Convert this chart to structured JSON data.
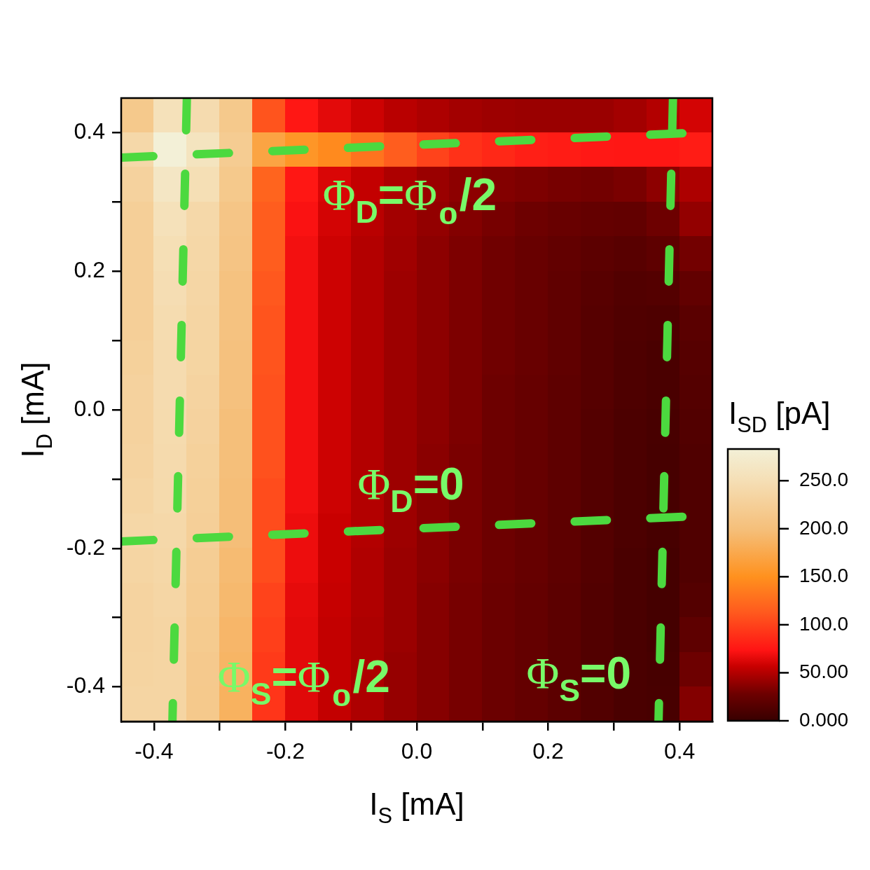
{
  "chart_data": {
    "type": "heatmap",
    "xlabel": "I$_{S}$ [mA]",
    "ylabel": "I$_{D}$ [mA]",
    "clabel": "I$_{SD}$ [pA]",
    "xlim": [
      -0.45,
      0.45
    ],
    "xticks": [
      -0.4,
      {
        "value": -0.3,
        "label": null
      },
      -0.2,
      {
        "value": -0.1,
        "label": null
      },
      {
        "value": 0,
        "label": "0.0"
      },
      {
        "value": 0.1,
        "label": null
      },
      0.2,
      {
        "value": 0.3,
        "label": null
      },
      0.4
    ],
    "ylim": [
      -0.45,
      0.45
    ],
    "yticks": [
      -0.4,
      {
        "value": -0.3,
        "label": null
      },
      -0.2,
      {
        "value": -0.1,
        "label": null
      },
      {
        "value": 0,
        "label": "0.0"
      },
      {
        "value": 0.1,
        "label": null
      },
      0.2,
      {
        "value": 0.3,
        "label": null
      },
      0.4
    ],
    "clim": [
      0,
      283
    ],
    "cticks": [
      {
        "value": 0,
        "label": "0.000"
      },
      {
        "value": 50,
        "label": "50.00"
      },
      {
        "value": 100,
        "label": "100.0"
      },
      {
        "value": 150,
        "label": "150.0"
      },
      {
        "value": 200,
        "label": "200.0"
      },
      {
        "value": 250,
        "label": "250.0"
      }
    ],
    "cells": [
      [
        215,
        255,
        245,
        215,
        110,
        75,
        65,
        58,
        52,
        48,
        45,
        43,
        42,
        42,
        42,
        45,
        50,
        60
      ],
      [
        240,
        283,
        260,
        220,
        170,
        155,
        145,
        130,
        115,
        100,
        90,
        85,
        80,
        78,
        76,
        75,
        75,
        78
      ],
      [
        230,
        265,
        250,
        215,
        120,
        75,
        62,
        55,
        48,
        42,
        38,
        35,
        33,
        31,
        30,
        32,
        38,
        48
      ],
      [
        225,
        255,
        240,
        210,
        115,
        72,
        60,
        52,
        45,
        40,
        35,
        31,
        28,
        25,
        23,
        22,
        28,
        40
      ],
      [
        225,
        250,
        238,
        208,
        115,
        70,
        58,
        50,
        44,
        38,
        33,
        29,
        25,
        22,
        19,
        17,
        20,
        30
      ],
      [
        225,
        248,
        236,
        205,
        112,
        70,
        58,
        50,
        43,
        38,
        33,
        29,
        25,
        21,
        17,
        14,
        15,
        22
      ],
      [
        225,
        246,
        235,
        205,
        110,
        70,
        58,
        50,
        43,
        38,
        33,
        29,
        25,
        21,
        16,
        13,
        12,
        18
      ],
      [
        228,
        245,
        234,
        203,
        110,
        70,
        58,
        50,
        43,
        38,
        33,
        29,
        25,
        21,
        16,
        12,
        10,
        16
      ],
      [
        230,
        245,
        232,
        203,
        108,
        70,
        58,
        50,
        43,
        38,
        33,
        28,
        24,
        20,
        16,
        12,
        10,
        15
      ],
      [
        230,
        244,
        230,
        200,
        108,
        70,
        58,
        50,
        43,
        38,
        33,
        28,
        24,
        20,
        15,
        11,
        9,
        14
      ],
      [
        232,
        243,
        228,
        200,
        108,
        70,
        58,
        50,
        43,
        37,
        32,
        28,
        24,
        20,
        15,
        11,
        8,
        13
      ],
      [
        235,
        242,
        226,
        198,
        105,
        70,
        58,
        50,
        43,
        37,
        32,
        28,
        24,
        20,
        15,
        11,
        8,
        13
      ],
      [
        238,
        240,
        225,
        198,
        105,
        68,
        57,
        50,
        43,
        37,
        32,
        28,
        24,
        20,
        15,
        11,
        8,
        13
      ],
      [
        235,
        238,
        222,
        195,
        105,
        68,
        57,
        49,
        42,
        37,
        32,
        28,
        24,
        20,
        15,
        10,
        7,
        13
      ],
      [
        232,
        236,
        220,
        193,
        100,
        66,
        56,
        49,
        42,
        36,
        31,
        27,
        23,
        19,
        14,
        10,
        7,
        15
      ],
      [
        232,
        235,
        218,
        190,
        98,
        65,
        55,
        48,
        42,
        36,
        31,
        27,
        23,
        19,
        14,
        10,
        7,
        20
      ],
      [
        233,
        235,
        216,
        188,
        95,
        65,
        55,
        48,
        41,
        36,
        31,
        27,
        23,
        19,
        14,
        10,
        8,
        28
      ],
      [
        235,
        235,
        215,
        185,
        92,
        64,
        55,
        48,
        41,
        36,
        31,
        27,
        23,
        19,
        14,
        10,
        9,
        35
      ]
    ],
    "series": [
      {
        "type": "line",
        "color": "#4cd93f",
        "line_style": "dashed",
        "x": [
          -0.35,
          -0.372
        ],
        "values": [
          0.45,
          -0.45
        ]
      },
      {
        "type": "line",
        "color": "#4cd93f",
        "line_style": "dashed",
        "x": [
          0.39,
          0.368
        ],
        "values": [
          0.45,
          -0.45
        ]
      },
      {
        "type": "line",
        "color": "#4cd93f",
        "line_style": "dashed",
        "x": [
          -0.45,
          0.45
        ],
        "values": [
          0.364,
          0.401
        ]
      },
      {
        "type": "line",
        "color": "#4cd93f",
        "line_style": "dashed",
        "x": [
          -0.45,
          0.415
        ],
        "values": [
          -0.19,
          -0.154
        ]
      }
    ],
    "annotations": [
      "Φ$_{D}$=Φ₀/2",
      "Φ$_{D}$=0",
      "Φ$_{S}$=Φ₀/2",
      "Φ$_{S}$=0"
    ]
  }
}
